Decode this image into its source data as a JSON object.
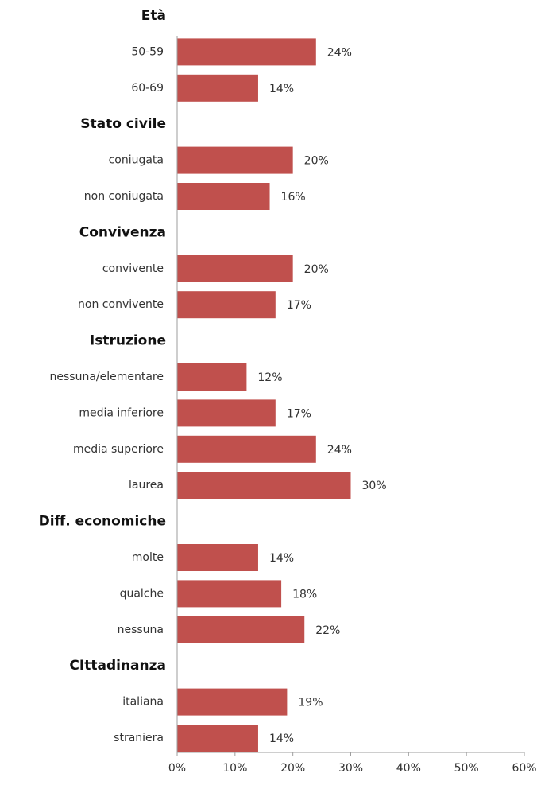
{
  "chart_data": {
    "type": "bar",
    "orientation": "horizontal",
    "bar_color": "#c0504d",
    "axis_color": "#9e9e9e",
    "xlim": [
      0,
      60
    ],
    "xticks": [
      0,
      10,
      20,
      30,
      40,
      50,
      60
    ],
    "xtick_labels": [
      "0%",
      "10%",
      "20%",
      "30%",
      "40%",
      "50%",
      "60%"
    ],
    "grid": false,
    "legend": "none",
    "groups": [
      {
        "title": "Età",
        "items": [
          {
            "label": "50-59",
            "value": 24,
            "value_label": "24%"
          },
          {
            "label": "60-69",
            "value": 14,
            "value_label": "14%"
          }
        ]
      },
      {
        "title": "Stato civile",
        "items": [
          {
            "label": "coniugata",
            "value": 20,
            "value_label": "20%"
          },
          {
            "label": "non coniugata",
            "value": 16,
            "value_label": "16%"
          }
        ]
      },
      {
        "title": "Convivenza",
        "items": [
          {
            "label": "convivente",
            "value": 20,
            "value_label": "20%"
          },
          {
            "label": "non convivente",
            "value": 17,
            "value_label": "17%"
          }
        ]
      },
      {
        "title": "Istruzione",
        "items": [
          {
            "label": "nessuna/elementare",
            "value": 12,
            "value_label": "12%"
          },
          {
            "label": "media inferiore",
            "value": 17,
            "value_label": "17%"
          },
          {
            "label": "media superiore",
            "value": 24,
            "value_label": "24%"
          },
          {
            "label": "laurea",
            "value": 30,
            "value_label": "30%"
          }
        ]
      },
      {
        "title": "Diff. economiche",
        "items": [
          {
            "label": "molte",
            "value": 14,
            "value_label": "14%"
          },
          {
            "label": "qualche",
            "value": 18,
            "value_label": "18%"
          },
          {
            "label": "nessuna",
            "value": 22,
            "value_label": "22%"
          }
        ]
      },
      {
        "title": "CIttadinanza",
        "items": [
          {
            "label": "italiana",
            "value": 19,
            "value_label": "19%"
          },
          {
            "label": "straniera",
            "value": 14,
            "value_label": "14%"
          }
        ]
      }
    ]
  }
}
